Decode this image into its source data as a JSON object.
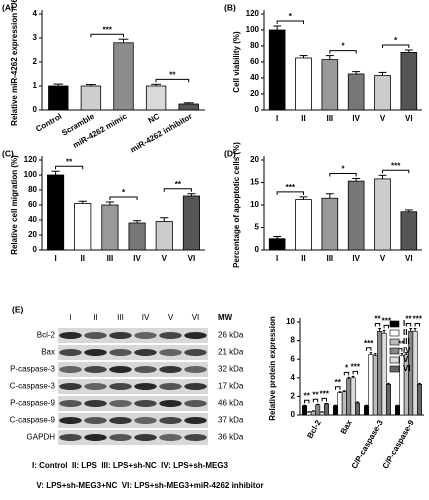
{
  "chart_data": [
    {
      "type": "bar",
      "panel": "(A)",
      "ylabel": "Relative miR-4262 expression /U6",
      "categories": [
        "Control",
        "Scramble",
        "miR-4262 mimic",
        "NC",
        "miR-4262 inhibitor"
      ],
      "values": [
        1.0,
        1.0,
        2.8,
        1.0,
        0.25
      ],
      "errors": [
        0.08,
        0.06,
        0.15,
        0.07,
        0.05
      ],
      "colors": [
        "#000000",
        "#cfcfcf",
        "#8c8c8c",
        "#d9d9d9",
        "#555555"
      ],
      "rotate_labels": true,
      "ylim": [
        0,
        4
      ],
      "yticks": [
        0,
        1,
        2,
        3,
        4
      ],
      "annotations": [
        {
          "text": "***",
          "between": [
            "Scramble",
            "miR-4262 mimic"
          ]
        },
        {
          "text": "**",
          "between": [
            "NC",
            "miR-4262 inhibitor"
          ]
        }
      ]
    },
    {
      "type": "bar",
      "panel": "(B)",
      "ylabel": "Cell viability (%)",
      "categories": [
        "I",
        "II",
        "III",
        "IV",
        "V",
        "VI"
      ],
      "values": [
        100,
        65,
        63,
        45,
        43,
        72
      ],
      "errors": [
        5,
        3,
        5,
        3,
        4,
        3
      ],
      "colors": [
        "#000000",
        "#ffffff",
        "#999999",
        "#777777",
        "#cccccc",
        "#555555"
      ],
      "rotate_labels": false,
      "ylim": [
        0,
        120
      ],
      "yticks": [
        0,
        20,
        40,
        60,
        80,
        100,
        120
      ],
      "annotations": [
        {
          "text": "*",
          "between": [
            "I",
            "II"
          ]
        },
        {
          "text": "*",
          "between": [
            "III",
            "IV"
          ]
        },
        {
          "text": "*",
          "between": [
            "V",
            "VI"
          ]
        }
      ]
    },
    {
      "type": "bar",
      "panel": "(C)",
      "ylabel": "Relative cell migration (%)",
      "categories": [
        "I",
        "II",
        "III",
        "IV",
        "V",
        "VI"
      ],
      "values": [
        100,
        62,
        60,
        36,
        38,
        72
      ],
      "errors": [
        5,
        3,
        4,
        3,
        5,
        3
      ],
      "colors": [
        "#000000",
        "#ffffff",
        "#999999",
        "#777777",
        "#cccccc",
        "#555555"
      ],
      "rotate_labels": false,
      "ylim": [
        0,
        120
      ],
      "yticks": [
        0,
        20,
        40,
        60,
        80,
        100,
        120
      ],
      "annotations": [
        {
          "text": "**",
          "between": [
            "I",
            "II"
          ]
        },
        {
          "text": "*",
          "between": [
            "III",
            "IV"
          ]
        },
        {
          "text": "**",
          "between": [
            "V",
            "VI"
          ]
        }
      ]
    },
    {
      "type": "bar",
      "panel": "(D)",
      "ylabel": "Percentage of apoptotic cells (%)",
      "categories": [
        "I",
        "II",
        "III",
        "IV",
        "V",
        "VI"
      ],
      "values": [
        2.5,
        11.2,
        11.5,
        15.3,
        15.8,
        8.5
      ],
      "errors": [
        0.5,
        0.6,
        1.0,
        0.6,
        0.8,
        0.4
      ],
      "colors": [
        "#000000",
        "#ffffff",
        "#999999",
        "#777777",
        "#cccccc",
        "#555555"
      ],
      "rotate_labels": false,
      "ylim": [
        0,
        20
      ],
      "yticks": [
        0,
        5,
        10,
        15,
        20
      ],
      "annotations": [
        {
          "text": "***",
          "between": [
            "I",
            "II"
          ]
        },
        {
          "text": "*",
          "between": [
            "III",
            "IV"
          ]
        },
        {
          "text": "***",
          "between": [
            "V",
            "VI"
          ]
        }
      ]
    },
    {
      "type": "bar",
      "ylabel": "Relative protein expression",
      "rotate_labels": true,
      "categories": [
        "Bcl-2",
        "Bax",
        "C/P-caspase-3",
        "C/P-caspase-9"
      ],
      "series": [
        {
          "name": "I",
          "color": "#000000",
          "values": [
            1.0,
            1.0,
            1.0,
            1.0
          ],
          "errors": [
            0.05,
            0.05,
            0.05,
            0.05
          ]
        },
        {
          "name": "II",
          "color": "#ffffff",
          "values": [
            0.3,
            2.4,
            6.5,
            6.4
          ],
          "errors": [
            0.05,
            0.1,
            0.2,
            0.2
          ]
        },
        {
          "name": "III",
          "color": "#bbbbbb",
          "values": [
            0.4,
            2.5,
            6.4,
            6.5
          ],
          "errors": [
            0.05,
            0.1,
            0.2,
            0.2
          ]
        },
        {
          "name": "IV",
          "color": "#888888",
          "values": [
            1.1,
            3.9,
            9.0,
            9.0
          ],
          "errors": [
            0.05,
            0.15,
            0.3,
            0.3
          ]
        },
        {
          "name": "V",
          "color": "#dddddd",
          "values": [
            0.3,
            4.0,
            8.8,
            9.0
          ],
          "errors": [
            0.05,
            0.15,
            0.3,
            0.3
          ]
        },
        {
          "name": "VI",
          "color": "#666666",
          "values": [
            1.2,
            1.3,
            3.3,
            3.3
          ],
          "errors": [
            0.05,
            0.1,
            0.1,
            0.1
          ]
        }
      ],
      "ylim": [
        0,
        10
      ],
      "yticks": [
        0,
        2,
        4,
        6,
        8,
        10
      ],
      "annotations": [
        {
          "text": "**",
          "category": "Bcl-2",
          "between": [
            "I",
            "II"
          ]
        },
        {
          "text": "**",
          "category": "Bcl-2",
          "between": [
            "III",
            "IV"
          ]
        },
        {
          "text": "***",
          "category": "Bcl-2",
          "between": [
            "V",
            "VI"
          ]
        },
        {
          "text": "**",
          "category": "Bax",
          "between": [
            "I",
            "II"
          ]
        },
        {
          "text": "*",
          "category": "Bax",
          "between": [
            "III",
            "IV"
          ]
        },
        {
          "text": "***",
          "category": "Bax",
          "between": [
            "V",
            "VI"
          ]
        },
        {
          "text": "***",
          "category": "C/P-caspase-3",
          "between": [
            "I",
            "II"
          ]
        },
        {
          "text": "**",
          "category": "C/P-caspase-3",
          "between": [
            "III",
            "IV"
          ]
        },
        {
          "text": "***",
          "category": "C/P-caspase-3",
          "between": [
            "V",
            "VI"
          ]
        },
        {
          "text": "***",
          "category": "C/P-caspase-9",
          "between": [
            "I",
            "II"
          ]
        },
        {
          "text": "**",
          "category": "C/P-caspase-9",
          "between": [
            "III",
            "IV"
          ]
        },
        {
          "text": "***",
          "category": "C/P-caspase-9",
          "between": [
            "V",
            "VI"
          ]
        }
      ]
    }
  ],
  "blot": {
    "panel": "(E)",
    "lanes": [
      "I",
      "II",
      "III",
      "IV",
      "V",
      "VI"
    ],
    "mw_header": "MW",
    "rows": [
      {
        "label": "Bcl-2",
        "mw": "26 kDa"
      },
      {
        "label": "Bax",
        "mw": "21 kDa"
      },
      {
        "label": "P-caspase-3",
        "mw": "32 kDa"
      },
      {
        "label": "C-caspase-3",
        "mw": "17 kDa"
      },
      {
        "label": "P-caspase-9",
        "mw": "46 kDa"
      },
      {
        "label": "C-caspase-9",
        "mw": "37 kDa"
      },
      {
        "label": "GAPDH",
        "mw": "36 kDa"
      }
    ]
  },
  "caption": [
    "I: Control  II: LPS  III: LPS+sh-NC  IV: LPS+sh-MEG3",
    "V: LPS+sh-MEG3+NC  VI: LPS+sh-MEG3+miR-4262 inhibitor"
  ]
}
